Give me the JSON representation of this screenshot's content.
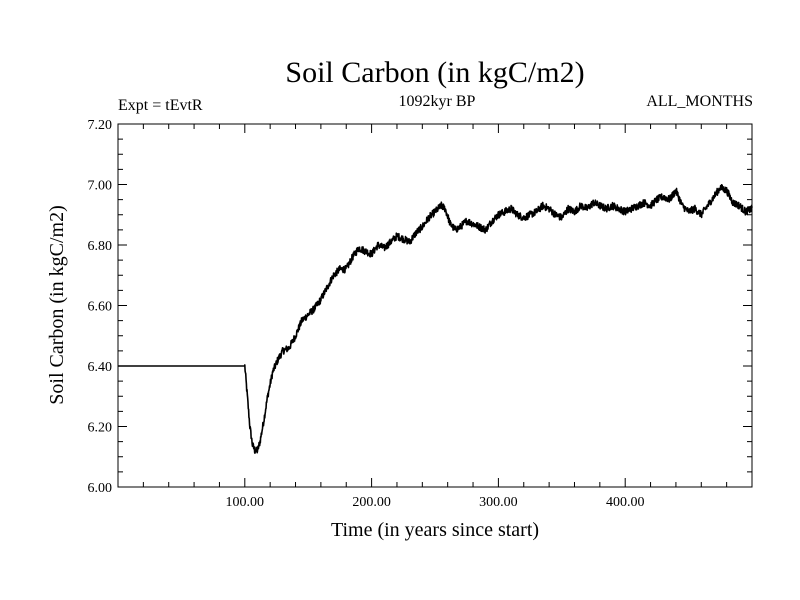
{
  "chart_data": {
    "type": "line",
    "title": "Soil Carbon (in kgC/m2)",
    "subtitle": "1092kyr BP",
    "annotation_left": "Expt = tEvtR",
    "annotation_right": "ALL_MONTHS",
    "xlabel": "Time (in years since start)",
    "ylabel": "Soil Carbon (in kgC/m2)",
    "xlim": [
      0,
      500
    ],
    "ylim": [
      6.0,
      7.2
    ],
    "x_ticks": [
      100,
      200,
      300,
      400
    ],
    "x_tick_labels": [
      "100.00",
      "200.00",
      "300.00",
      "400.00"
    ],
    "x_minor_step": 20,
    "y_ticks": [
      6.0,
      6.2,
      6.4,
      6.6,
      6.8,
      7.0,
      7.2
    ],
    "y_tick_labels": [
      "6.00",
      "6.20",
      "6.40",
      "6.60",
      "6.80",
      "7.00",
      "7.20"
    ],
    "y_minor_step": 0.05,
    "grid": false,
    "series": [
      {
        "name": "Soil Carbon",
        "x": [
          0,
          100,
          102,
          104,
          106,
          108,
          110,
          112,
          115,
          118,
          122,
          126,
          130,
          135,
          140,
          145,
          150,
          155,
          160,
          165,
          170,
          175,
          180,
          185,
          190,
          195,
          200,
          205,
          210,
          215,
          220,
          225,
          230,
          235,
          240,
          245,
          250,
          255,
          258,
          262,
          266,
          270,
          275,
          280,
          285,
          290,
          295,
          300,
          305,
          310,
          315,
          320,
          325,
          330,
          335,
          340,
          345,
          350,
          355,
          360,
          365,
          370,
          375,
          380,
          385,
          390,
          395,
          400,
          405,
          410,
          415,
          420,
          425,
          430,
          435,
          440,
          445,
          450,
          455,
          460,
          465,
          470,
          475,
          480,
          485,
          490,
          495,
          500
        ],
        "values": [
          6.4,
          6.4,
          6.3,
          6.2,
          6.14,
          6.12,
          6.12,
          6.15,
          6.22,
          6.3,
          6.38,
          6.42,
          6.45,
          6.46,
          6.5,
          6.55,
          6.57,
          6.59,
          6.62,
          6.66,
          6.7,
          6.72,
          6.72,
          6.76,
          6.79,
          6.78,
          6.77,
          6.8,
          6.79,
          6.81,
          6.83,
          6.82,
          6.81,
          6.84,
          6.86,
          6.89,
          6.91,
          6.93,
          6.92,
          6.87,
          6.85,
          6.86,
          6.88,
          6.87,
          6.86,
          6.85,
          6.88,
          6.9,
          6.91,
          6.92,
          6.9,
          6.89,
          6.9,
          6.91,
          6.93,
          6.92,
          6.9,
          6.89,
          6.92,
          6.91,
          6.93,
          6.92,
          6.94,
          6.93,
          6.92,
          6.93,
          6.92,
          6.91,
          6.92,
          6.93,
          6.94,
          6.93,
          6.95,
          6.96,
          6.95,
          6.98,
          6.93,
          6.91,
          6.92,
          6.9,
          6.93,
          6.96,
          6.99,
          6.98,
          6.94,
          6.93,
          6.91,
          6.92
        ],
        "noise_amplitude": 0.012,
        "noise_start_x": 100
      }
    ]
  }
}
